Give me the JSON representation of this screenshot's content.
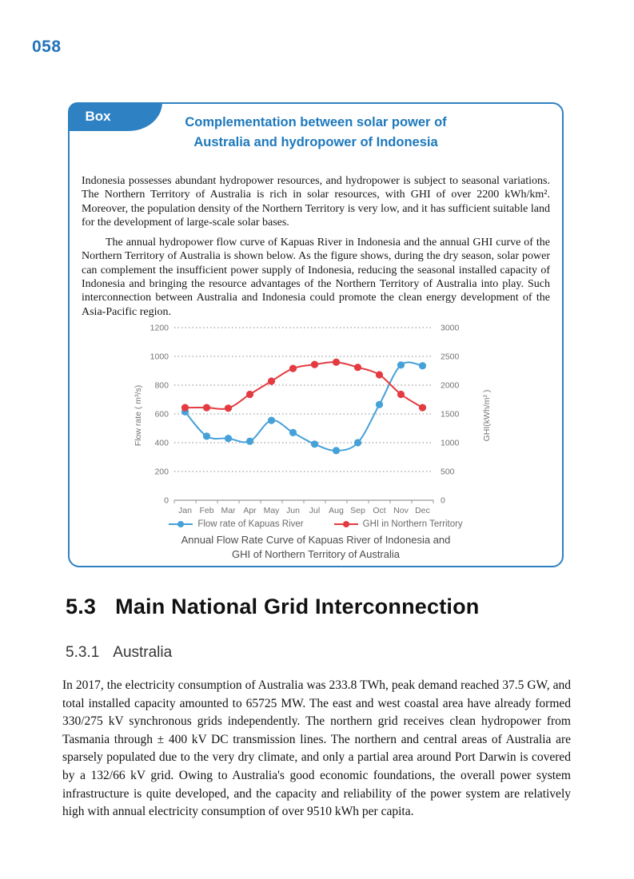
{
  "page": {
    "number": "058"
  },
  "box": {
    "tab_label": "Box",
    "title_line1": "Complementation between solar power of",
    "title_line2": "Australia and hydropower of Indonesia",
    "paragraph1": "Indonesia possesses abundant hydropower resources, and hydropower is subject to seasonal variations. The Northern Territory of Australia is rich in solar resources, with GHI of over 2200 kWh/km². Moreover, the population density of the Northern Territory is very low, and it has sufficient suitable land for the development of large-scale solar bases.",
    "paragraph2": "The annual hydropower flow curve of Kapuas River in Indonesia and the annual GHI curve of the Northern Territory of Australia is shown below. As the figure shows, during the dry season, solar power can complement the insufficient power supply of Indonesia, reducing the seasonal installed capacity of Indonesia and bringing the resource advantages of the Northern Territory of Australia into play. Such interconnection between Australia and Indonesia could promote the clean energy development of the Asia-Pacific region."
  },
  "chart_data": {
    "type": "line",
    "categories": [
      "Jan",
      "Feb",
      "Mar",
      "Apr",
      "May",
      "Jun",
      "Jul",
      "Aug",
      "Sep",
      "Oct",
      "Nov",
      "Dec"
    ],
    "series": [
      {
        "name": "Flow rate of Kapuas River",
        "axis": "left",
        "color": "#45a1d8",
        "values": [
          615,
          445,
          430,
          410,
          555,
          470,
          390,
          345,
          400,
          665,
          940,
          935
        ]
      },
      {
        "name": "GHI in Northern Territory",
        "axis": "right",
        "color": "#e33b41",
        "values": [
          1610,
          1610,
          1600,
          1840,
          2070,
          2290,
          2360,
          2400,
          2310,
          2180,
          1840,
          1610
        ]
      }
    ],
    "left_axis": {
      "label": "Flow rate ( m³/s)",
      "min": 0,
      "max": 1200,
      "step": 200
    },
    "right_axis": {
      "label": "GHI(kWh/m² )",
      "min": 0,
      "max": 3000,
      "step": 500
    },
    "grid": "dotted-horizontal",
    "legend_position": "bottom",
    "caption_line1": "Annual Flow Rate Curve of Kapuas River of Indonesia and",
    "caption_line2": "GHI of Northern Territory of Australia"
  },
  "section": {
    "number": "5.3",
    "title": "Main National Grid Interconnection",
    "subsection_number": "5.3.1",
    "subsection_title": "Australia",
    "paragraph": "In 2017, the electricity consumption of Australia was 233.8 TWh, peak demand reached 37.5 GW, and total installed capacity amounted to 65725 MW. The east and west coastal area have already formed 330/275 kV synchronous grids independently. The northern grid receives clean hydropower from Tasmania through ± 400 kV DC transmission lines. The northern and central areas of Australia are sparsely populated due to the very dry climate, and only a partial area around Port Darwin is covered by a 132/66 kV grid. Owing to Australia's good economic foundations, the overall power system infrastructure is quite developed, and the capacity and reliability of the power system are relatively high with annual electricity consumption of over 9510 kWh per capita."
  },
  "colors": {
    "accent_blue": "#2e81c2",
    "title_blue": "#1d79bd",
    "series_blue": "#45a1d8",
    "series_red": "#e33b41",
    "grid_gray": "#8a8a8a",
    "axis_text": "#737373"
  }
}
